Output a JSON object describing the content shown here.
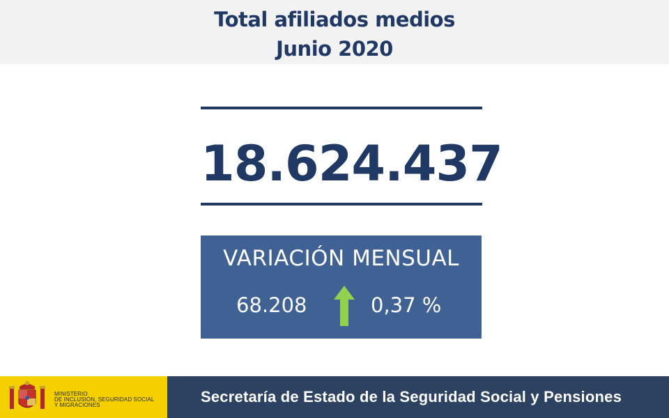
{
  "header": {
    "title_line1": "Total afiliados medios",
    "title_line2": "Junio 2020"
  },
  "total": {
    "value": "18.624.437"
  },
  "variation": {
    "title": "VARIACIÓN MENSUAL",
    "absolute": "68.208",
    "percent": "0,37 %",
    "direction_icon": "arrow-up-icon",
    "arrow_color": "#92d050"
  },
  "footer": {
    "ministry_line1": "MINISTERIO",
    "ministry_line2": "DE INCLUSIÓN, SEGURIDAD SOCIAL",
    "ministry_line3": "Y MIGRACIONES",
    "secretariat": "Secretaría de Estado de la Seguridad Social y Pensiones",
    "logo_icon": "coat-of-arms-icon",
    "logo_bg": "#f5d000",
    "bar_bg": "#2d4260"
  },
  "colors": {
    "accent": "#1f3864",
    "box_bg": "#3f6193"
  }
}
